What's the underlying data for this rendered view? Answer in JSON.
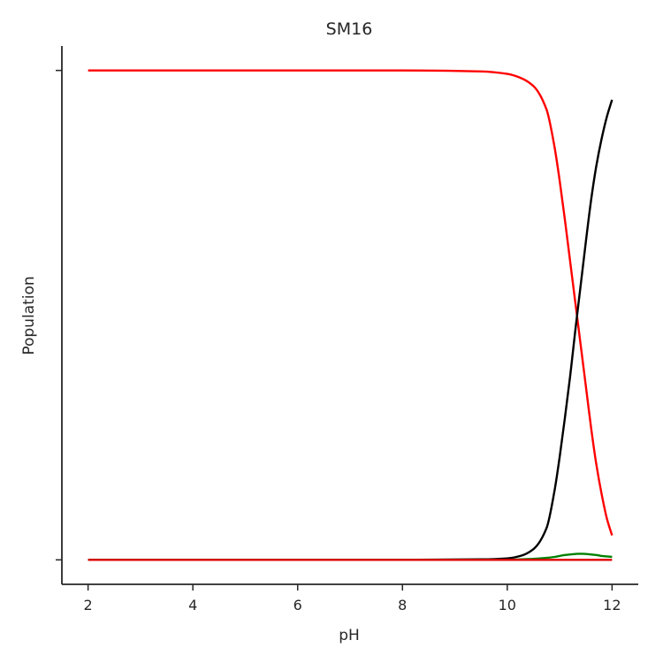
{
  "chart_data": {
    "type": "line",
    "title": "SM16",
    "xlabel": "pH",
    "ylabel": "Population",
    "xlim": [
      1.5,
      12.5
    ],
    "ylim": [
      -0.05,
      1.05
    ],
    "x_ticks": [
      2,
      4,
      6,
      8,
      10,
      12
    ],
    "x_tick_labels": [
      "2",
      "4",
      "6",
      "8",
      "10",
      "12"
    ],
    "y_ticks": [
      0,
      1
    ],
    "y_tick_labels": [
      "",
      ""
    ],
    "grid": false,
    "legend": "none",
    "x": [
      2.0,
      8.0,
      9.5,
      10.0,
      10.25,
      10.5,
      10.75,
      10.9,
      11.0,
      11.1,
      11.2,
      11.3,
      11.4,
      11.5,
      11.6,
      11.7,
      11.8,
      11.9,
      12.0
    ],
    "series": [
      {
        "color": "#ff0000",
        "values": [
          1.0,
          1.0,
          0.998,
          0.993,
          0.985,
          0.968,
          0.92,
          0.845,
          0.775,
          0.695,
          0.61,
          0.525,
          0.44,
          0.355,
          0.27,
          0.195,
          0.135,
          0.085,
          0.05
        ]
      },
      {
        "color": "#000000",
        "values": [
          0.0,
          0.0,
          0.001,
          0.003,
          0.008,
          0.022,
          0.065,
          0.14,
          0.21,
          0.29,
          0.375,
          0.47,
          0.56,
          0.65,
          0.735,
          0.805,
          0.86,
          0.905,
          0.94
        ]
      },
      {
        "color": "#008000",
        "values": [
          0.0,
          0.0,
          0.0,
          0.0,
          0.001,
          0.002,
          0.004,
          0.006,
          0.008,
          0.01,
          0.011,
          0.012,
          0.0125,
          0.012,
          0.011,
          0.01,
          0.008,
          0.007,
          0.006
        ]
      },
      {
        "color": "#e00000",
        "values": [
          0.0,
          0.0,
          0.0,
          0.0,
          0.0,
          0.0,
          0.0,
          0.0,
          0.0,
          0.0,
          0.0,
          0.0,
          0.0,
          0.0,
          0.0,
          0.0,
          0.0,
          0.0,
          0.0
        ]
      }
    ]
  }
}
